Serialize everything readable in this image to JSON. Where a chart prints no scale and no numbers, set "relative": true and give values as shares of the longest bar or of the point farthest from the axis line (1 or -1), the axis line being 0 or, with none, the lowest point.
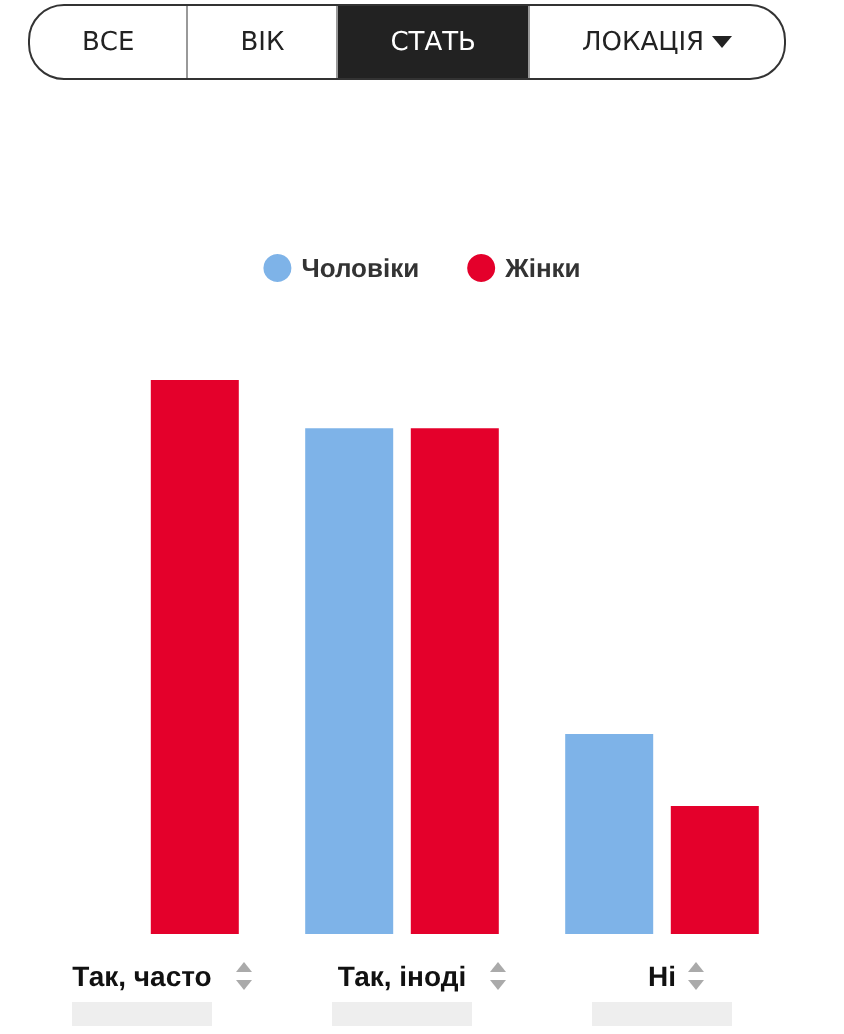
{
  "chart_data": {
    "type": "bar",
    "relative": true,
    "categories": [
      "Так, часто",
      "Так, іноді",
      "Ні"
    ],
    "series": [
      {
        "name": "Чоловіки",
        "color": "#7eb3e8",
        "values": [
          null,
          0.913,
          0.361
        ]
      },
      {
        "name": "Жінки",
        "color": "#e4002b",
        "values": [
          1,
          0.913,
          0.231
        ]
      }
    ],
    "legend": "top",
    "annotations": [
      "ВСЕ",
      "ВІК",
      "СТАТЬ",
      "ЛОКАЦІЯ"
    ]
  }
}
